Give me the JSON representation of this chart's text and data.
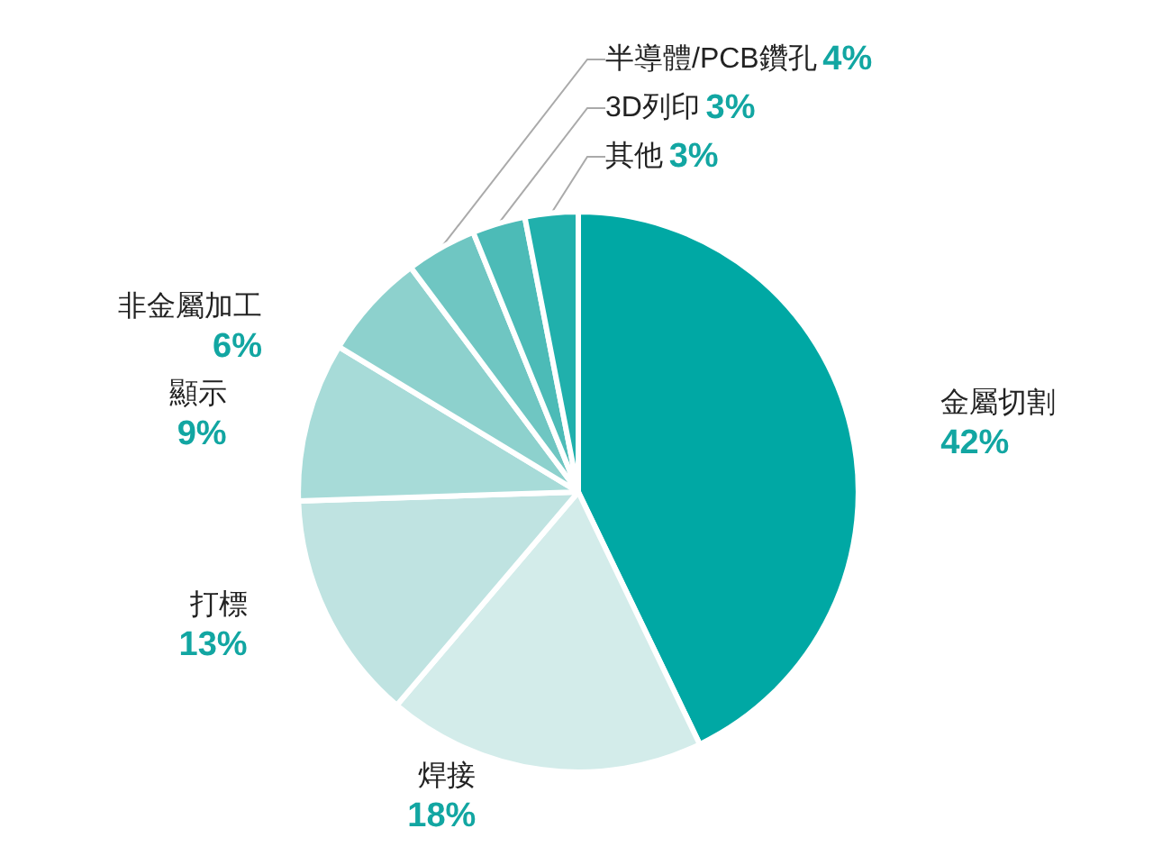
{
  "chart_data": {
    "type": "pie",
    "categories": [
      "金屬切割",
      "焊接",
      "打標",
      "顯示",
      "非金屬加工",
      "半導體/PCB鑽孔",
      "3D列印",
      "其他"
    ],
    "values": [
      42,
      18,
      13,
      9,
      6,
      4,
      3,
      3
    ],
    "value_labels": [
      "42%",
      "18%",
      "13%",
      "9%",
      "6%",
      "4%",
      "3%",
      "3%"
    ],
    "colors": [
      "#00a8a4",
      "#d3ecea",
      "#bfe3e1",
      "#a7dbd8",
      "#8dd1cd",
      "#6fc6c2",
      "#4cbbb7",
      "#20b0ac"
    ],
    "legend": false
  }
}
